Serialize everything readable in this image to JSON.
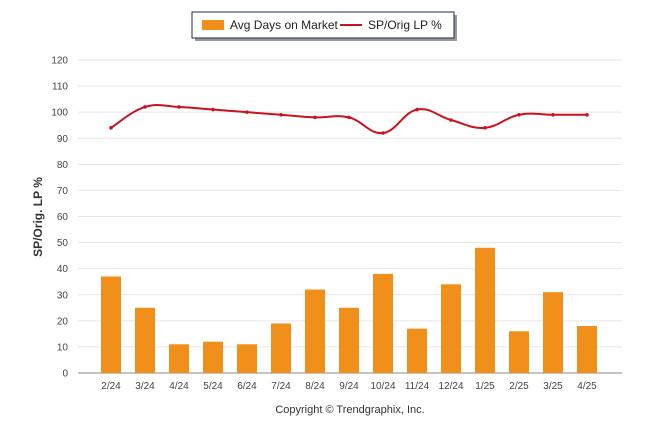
{
  "chart_data": {
    "type": "bar",
    "categories": [
      "2/24",
      "3/24",
      "4/24",
      "5/24",
      "6/24",
      "7/24",
      "8/24",
      "9/24",
      "10/24",
      "11/24",
      "12/24",
      "1/25",
      "2/25",
      "3/25",
      "4/25"
    ],
    "series": [
      {
        "name": "Avg Days on Market",
        "type": "bar",
        "color": "#f0901a",
        "values": [
          37,
          25,
          11,
          12,
          11,
          19,
          32,
          25,
          38,
          17,
          34,
          48,
          16,
          31,
          18
        ]
      },
      {
        "name": "SP/Orig LP %",
        "type": "line",
        "color": "#c8141e",
        "values": [
          94,
          102,
          102,
          101,
          100,
          99,
          98,
          98,
          92,
          101,
          97,
          94,
          99,
          99,
          99
        ]
      }
    ],
    "title": "",
    "xlabel": "",
    "ylabel": "SP/Orig. LP %",
    "ylim": [
      0,
      120
    ],
    "yticks": [
      0,
      10,
      20,
      30,
      40,
      50,
      60,
      70,
      80,
      90,
      100,
      110,
      120
    ],
    "grid": true,
    "legend_position": "top-center"
  },
  "footer": {
    "copyright": "Copyright © Trendgraphix, Inc."
  }
}
